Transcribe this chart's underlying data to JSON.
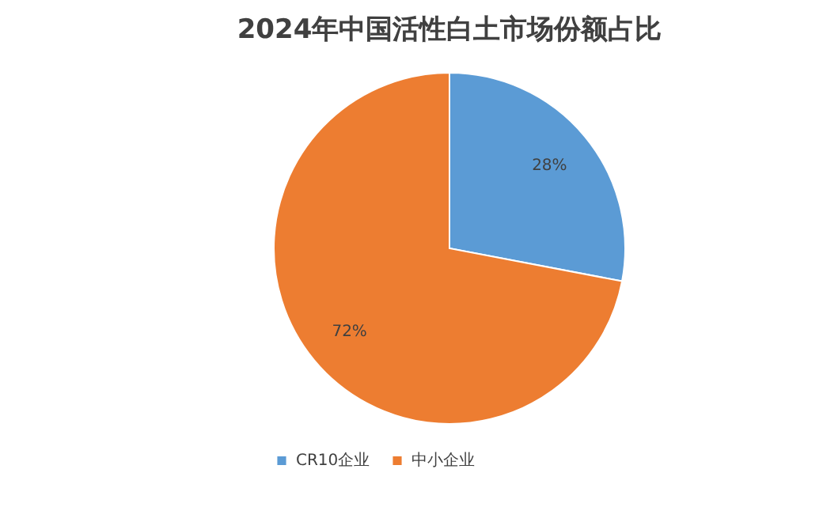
{
  "chart_data": {
    "type": "pie",
    "title": "2024年中国活性白土市场份额占比",
    "categories": [
      "CR10企业",
      "中小企业"
    ],
    "values": [
      28,
      72
    ],
    "colors": [
      "#5b9bd5",
      "#ed7d31"
    ],
    "value_labels": [
      "28%",
      "72%"
    ],
    "legend": "bottom"
  }
}
